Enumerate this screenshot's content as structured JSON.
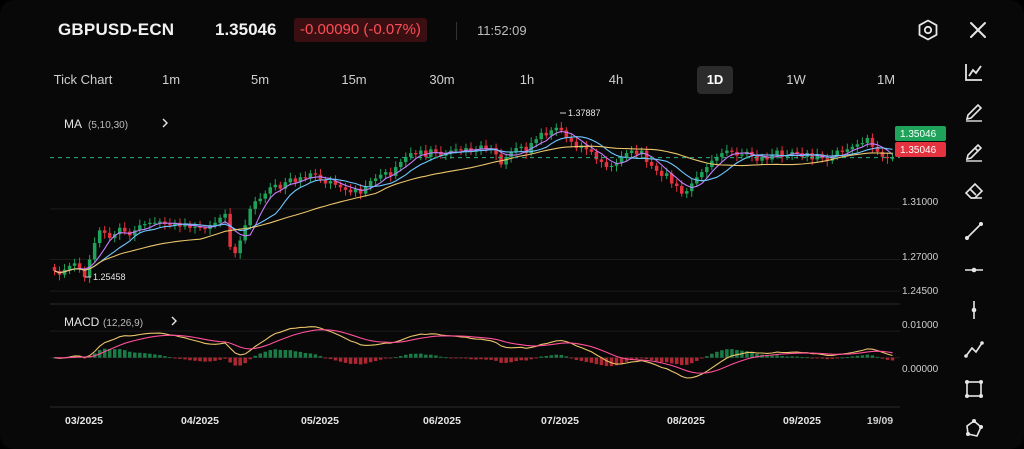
{
  "header": {
    "symbol": "GBPUSD-ECN",
    "price": "1.35046",
    "change": "-0.00090 (-0.07%)",
    "time": "11:52:09"
  },
  "timeframes": [
    "Tick Chart",
    "1m",
    "5m",
    "15m",
    "30m",
    "1h",
    "4h",
    "1D",
    "1W",
    "1M"
  ],
  "active_timeframe": "1D",
  "colors": {
    "up": "#1fa35b",
    "down": "#e5323f",
    "ma5": "#e9c46a",
    "ma10": "#c77dff",
    "ma30": "#6ec6ff",
    "macd": "#e9c46a",
    "signal": "#ff4f9a",
    "ask_badge": "#1fa35b",
    "bid_badge": "#e5323f"
  },
  "icons": {
    "header": [
      "settings-hex-icon",
      "close-icon"
    ],
    "toolbar": [
      "line-chart-icon",
      "pencil-icon",
      "pencil-filled-icon",
      "eraser-icon",
      "trend-line-icon",
      "horizontal-line-icon",
      "vertical-line-icon",
      "polyline-icon",
      "rectangle-icon",
      "shape-icon"
    ]
  },
  "chart_data": {
    "type": "candlestick",
    "main_indicator": {
      "label": "MA",
      "params": "(5,10,30)"
    },
    "sub_indicator": {
      "label": "MACD",
      "params": "(12,26,9)"
    },
    "x_ticks": [
      "03/2025",
      "04/2025",
      "05/2025",
      "06/2025",
      "07/2025",
      "08/2025",
      "09/2025",
      "19/09"
    ],
    "y_ticks": [
      "1.31000",
      "1.27000",
      "1.24500"
    ],
    "y_ticks_values": [
      1.31,
      1.27,
      1.245
    ],
    "price_ylim": [
      1.238,
      1.392
    ],
    "current_price_label": "1.35046",
    "ask_label": "1.35046",
    "bid_label": "1.35046",
    "high_label": "1.37887",
    "low_label": "1.25458",
    "close_series": [
      1.261,
      1.258,
      1.262,
      1.265,
      1.267,
      1.262,
      1.256,
      1.27,
      1.283,
      1.293,
      1.291,
      1.287,
      1.29,
      1.295,
      1.292,
      1.289,
      1.293,
      1.297,
      1.298,
      1.299,
      1.299,
      1.3,
      1.298,
      1.297,
      1.299,
      1.296,
      1.298,
      1.295,
      1.296,
      1.295,
      1.294,
      1.297,
      1.299,
      1.303,
      1.306,
      1.28,
      1.275,
      1.285,
      1.297,
      1.31,
      1.316,
      1.318,
      1.322,
      1.327,
      1.329,
      1.326,
      1.331,
      1.334,
      1.331,
      1.335,
      1.334,
      1.338,
      1.337,
      1.333,
      1.33,
      1.332,
      1.329,
      1.327,
      1.325,
      1.323,
      1.326,
      1.322,
      1.328,
      1.332,
      1.334,
      1.337,
      1.339,
      1.336,
      1.343,
      1.347,
      1.351,
      1.354,
      1.353,
      1.356,
      1.351,
      1.357,
      1.355,
      1.352,
      1.354,
      1.356,
      1.357,
      1.356,
      1.358,
      1.355,
      1.357,
      1.36,
      1.357,
      1.358,
      1.353,
      1.345,
      1.351,
      1.355,
      1.358,
      1.359,
      1.354,
      1.362,
      1.365,
      1.37,
      1.368,
      1.372,
      1.374,
      1.372,
      1.366,
      1.363,
      1.358,
      1.36,
      1.357,
      1.355,
      1.349,
      1.347,
      1.343,
      1.344,
      1.346,
      1.351,
      1.354,
      1.356,
      1.353,
      1.356,
      1.347,
      1.344,
      1.34,
      1.336,
      1.338,
      1.33,
      1.328,
      1.322,
      1.324,
      1.33,
      1.335,
      1.339,
      1.343,
      1.348,
      1.351,
      1.354,
      1.356,
      1.355,
      1.352,
      1.353,
      1.355,
      1.352,
      1.348,
      1.351,
      1.349,
      1.353,
      1.356,
      1.351,
      1.352,
      1.355,
      1.354,
      1.351,
      1.354,
      1.349,
      1.353,
      1.35,
      1.348,
      1.352,
      1.356,
      1.355,
      1.357,
      1.359,
      1.361,
      1.362,
      1.366,
      1.359,
      1.355,
      1.351,
      1.35,
      1.35
    ],
    "macd_ylim": [
      -0.016,
      0.018
    ],
    "macd_y_ticks": [
      "0.01000",
      "0.00000"
    ],
    "macd_y_ticks_values": [
      0.01,
      0.0
    ]
  }
}
